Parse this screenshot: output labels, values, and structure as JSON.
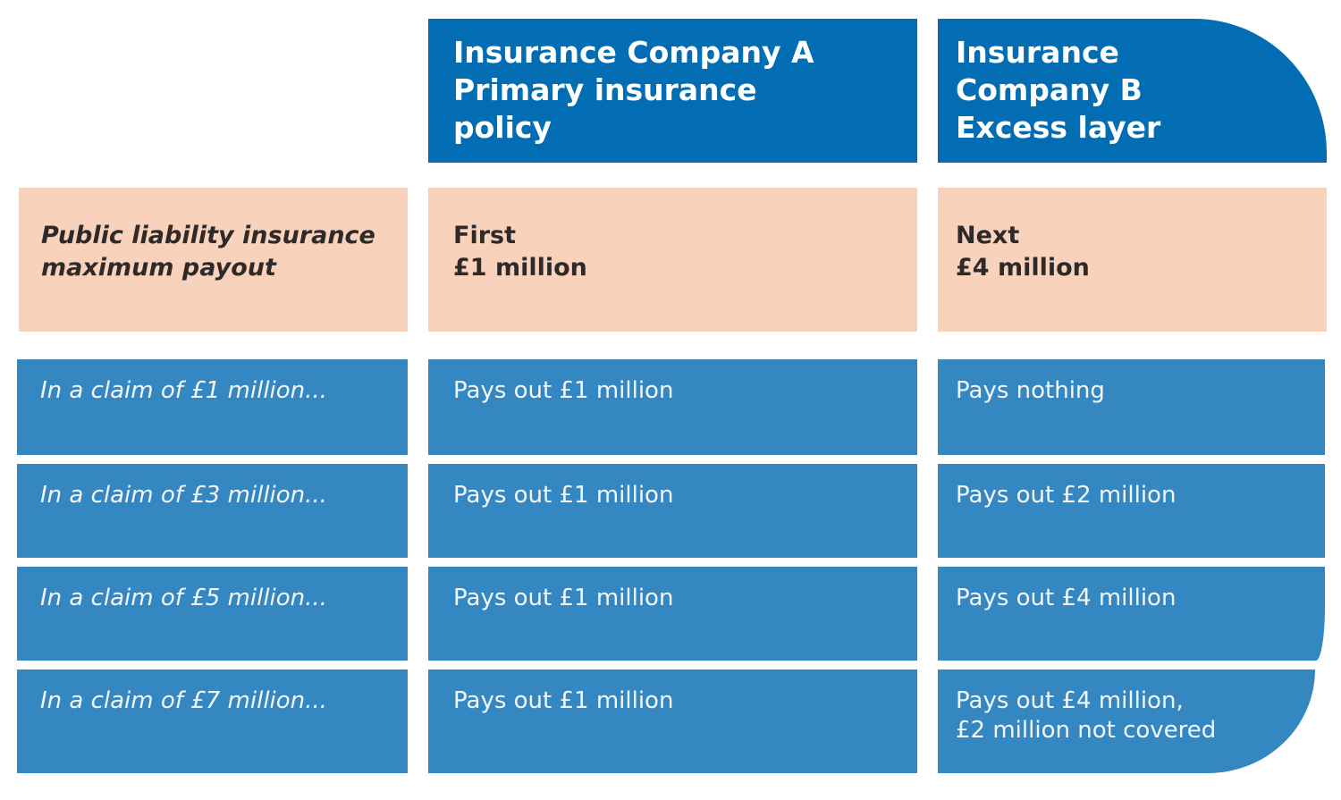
{
  "header": {
    "company_a": [
      "Insurance Company A",
      "Primary insurance",
      "policy"
    ],
    "company_b": [
      "Insurance",
      "Company B",
      "Excess layer"
    ]
  },
  "payout_row": {
    "label": [
      "Public liability insurance",
      "maximum payout"
    ],
    "company_a": [
      "First",
      "£1 million"
    ],
    "company_b": [
      "Next",
      "£4 million"
    ]
  },
  "claims": [
    {
      "label": "In a claim of £1 million...",
      "company_a": "Pays out £1 million",
      "company_b": [
        "Pays nothing"
      ]
    },
    {
      "label": "In a claim of £3 million...",
      "company_a": "Pays out £1 million",
      "company_b": [
        "Pays out £2 million"
      ]
    },
    {
      "label": "In a claim of £5 million...",
      "company_a": "Pays out £1 million",
      "company_b": [
        "Pays out £4 million"
      ]
    },
    {
      "label": "In a claim of £7 million...",
      "company_a": "Pays out £1 million",
      "company_b": [
        "Pays out £4 million,",
        "£2 million not covered"
      ]
    }
  ],
  "colors": {
    "header_blue": "#036db3",
    "row_blue": "#3587c1",
    "peach": "#f8d2bb",
    "dark_text": "#2f2a2a"
  }
}
